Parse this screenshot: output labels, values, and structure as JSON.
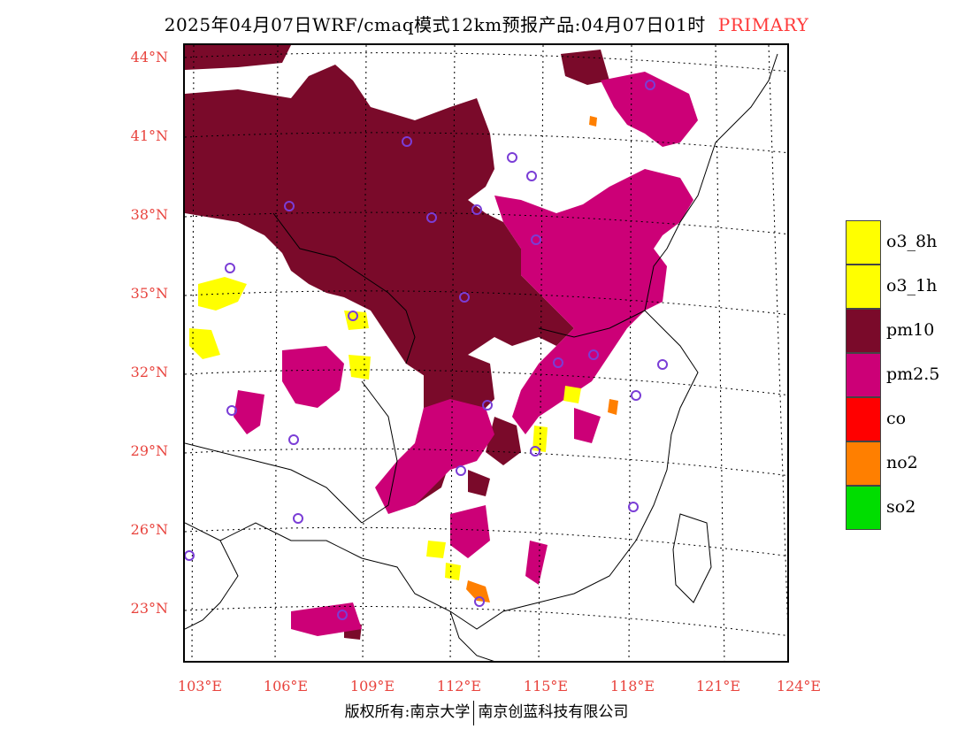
{
  "title": {
    "main": "2025年04月07日WRF/cmaq模式12km预报产品:04月07日01时",
    "tag": "PRIMARY"
  },
  "map": {
    "lat_labels": [
      "44°N",
      "41°N",
      "38°N",
      "35°N",
      "32°N",
      "29°N",
      "26°N",
      "23°N"
    ],
    "lon_labels": [
      "103°E",
      "106°E",
      "109°E",
      "112°E",
      "115°E",
      "118°E",
      "121°E",
      "124°E"
    ],
    "station_marker": "circle-marker"
  },
  "legend": {
    "items": [
      {
        "label": "o3_8h",
        "color": "#ffff00"
      },
      {
        "label": "o3_1h",
        "color": "#ffff00"
      },
      {
        "label": "pm10",
        "color": "#7a0a2a"
      },
      {
        "label": "pm2.5",
        "color": "#cc0077"
      },
      {
        "label": "co",
        "color": "#ff0000"
      },
      {
        "label": "no2",
        "color": "#ff7f00"
      },
      {
        "label": "so2",
        "color": "#00dd00"
      }
    ]
  },
  "footer": {
    "left": "版权所有:南京大学",
    "right": "南京创蓝科技有限公司"
  }
}
